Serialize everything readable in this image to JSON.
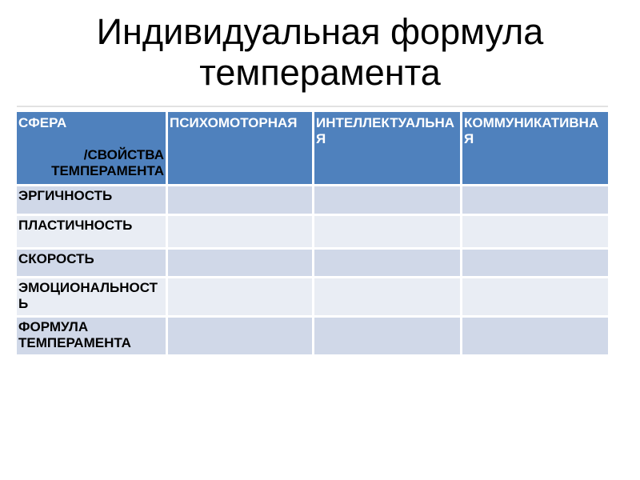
{
  "title": "Индивидуальная формула темперамента",
  "colors": {
    "slide_background": "#ffffff",
    "header_bg": "#4f81bd",
    "header_text": "#ffffff",
    "band_dark": "#d0d8e8",
    "band_light": "#e9edf4",
    "body_text": "#000000"
  },
  "table": {
    "corner": {
      "sphere_label": "СФЕРА",
      "properties_label": "/СВОЙСТВА ТЕМПЕРАМЕНТА"
    },
    "columns": [
      "ПСИХОМОТОРНАЯ",
      "ИНТЕЛЛЕКТУАЛЬНАЯ",
      "КОММУНИКАТИВНАЯ"
    ],
    "rows": [
      {
        "label": "ЭРГИЧНОСТЬ",
        "values": [
          "",
          "",
          ""
        ]
      },
      {
        "label": "ПЛАСТИЧНОСТЬ",
        "values": [
          "",
          "",
          ""
        ]
      },
      {
        "label": "СКОРОСТЬ",
        "values": [
          "",
          "",
          ""
        ]
      },
      {
        "label": "ЭМОЦИОНАЛЬНОСТЬ",
        "values": [
          "",
          "",
          ""
        ]
      },
      {
        "label": "ФОРМУЛА ТЕМПЕРАМЕНТА",
        "values": [
          "",
          "",
          ""
        ]
      }
    ]
  }
}
